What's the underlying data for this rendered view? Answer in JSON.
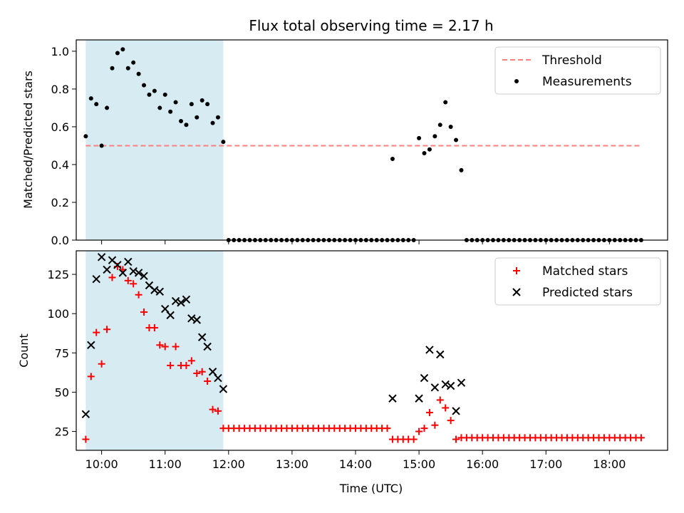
{
  "chart_data": [
    {
      "type": "scatter",
      "title": "Flux total observing time = 2.17 h",
      "ylabel": "Matched/Predicted stars",
      "xlabel": "",
      "xlim": [
        "09:36",
        "18:55"
      ],
      "ylim": [
        0,
        1.06
      ],
      "yticks": [
        "0.0",
        "0.2",
        "0.4",
        "0.6",
        "0.8",
        "1.0"
      ],
      "shaded_span": [
        "09:45",
        "11:55"
      ],
      "shade_color": "#add8e6",
      "legend_position": "top-right",
      "series": [
        {
          "name": "Threshold",
          "kind": "dashed-line",
          "color": "#ff7f7f",
          "x": [
            "09:45",
            "18:30"
          ],
          "y": [
            0.5,
            0.5
          ]
        },
        {
          "name": "Measurements",
          "kind": "dot",
          "color": "#000000",
          "points": [
            [
              "09:45",
              0.55
            ],
            [
              "09:50",
              0.75
            ],
            [
              "09:55",
              0.72
            ],
            [
              "10:00",
              0.5
            ],
            [
              "10:05",
              0.7
            ],
            [
              "10:10",
              0.91
            ],
            [
              "10:15",
              0.99
            ],
            [
              "10:20",
              1.01
            ],
            [
              "10:25",
              0.91
            ],
            [
              "10:30",
              0.94
            ],
            [
              "10:35",
              0.88
            ],
            [
              "10:40",
              0.82
            ],
            [
              "10:45",
              0.77
            ],
            [
              "10:50",
              0.79
            ],
            [
              "10:55",
              0.7
            ],
            [
              "11:00",
              0.77
            ],
            [
              "11:05",
              0.68
            ],
            [
              "11:10",
              0.73
            ],
            [
              "11:15",
              0.63
            ],
            [
              "11:20",
              0.61
            ],
            [
              "11:25",
              0.72
            ],
            [
              "11:30",
              0.65
            ],
            [
              "11:35",
              0.74
            ],
            [
              "11:40",
              0.72
            ],
            [
              "11:45",
              0.62
            ],
            [
              "11:50",
              0.65
            ],
            [
              "11:55",
              0.52
            ],
            [
              "14:35",
              0.43
            ],
            [
              "15:00",
              0.54
            ],
            [
              "15:05",
              0.46
            ],
            [
              "15:10",
              0.48
            ],
            [
              "15:15",
              0.55
            ],
            [
              "15:20",
              0.61
            ],
            [
              "15:25",
              0.73
            ],
            [
              "15:30",
              0.6
            ],
            [
              "15:35",
              0.53
            ],
            [
              "15:40",
              0.37
            ]
          ],
          "zero_ranges": [
            [
              "12:00",
              "14:30"
            ],
            [
              "14:35",
              "14:55"
            ],
            [
              "15:45",
              "18:30"
            ]
          ],
          "zero_step_minutes": 5
        }
      ]
    },
    {
      "type": "scatter",
      "title": "",
      "ylabel": "Count",
      "xlabel": "Time (UTC)",
      "xlim": [
        "09:36",
        "18:55"
      ],
      "ylim": [
        13,
        140
      ],
      "yticks": [
        "25",
        "50",
        "75",
        "100",
        "125"
      ],
      "xticks": [
        "10:00",
        "11:00",
        "12:00",
        "13:00",
        "14:00",
        "15:00",
        "16:00",
        "17:00",
        "18:00"
      ],
      "shaded_span": [
        "09:45",
        "11:55"
      ],
      "shade_color": "#add8e6",
      "legend_position": "top-right",
      "series": [
        {
          "name": "Matched stars",
          "marker": "+",
          "color": "#ff0000",
          "points": [
            [
              "09:45",
              20
            ],
            [
              "09:50",
              60
            ],
            [
              "09:55",
              88
            ],
            [
              "10:00",
              68
            ],
            [
              "10:05",
              90
            ],
            [
              "10:10",
              123
            ],
            [
              "10:15",
              130
            ],
            [
              "10:20",
              128
            ],
            [
              "10:25",
              121
            ],
            [
              "10:30",
              119
            ],
            [
              "10:35",
              112
            ],
            [
              "10:40",
              101
            ],
            [
              "10:45",
              91
            ],
            [
              "10:50",
              91
            ],
            [
              "10:55",
              80
            ],
            [
              "11:00",
              79
            ],
            [
              "11:05",
              67
            ],
            [
              "11:10",
              79
            ],
            [
              "11:15",
              67
            ],
            [
              "11:20",
              67
            ],
            [
              "11:25",
              70
            ],
            [
              "11:30",
              62
            ],
            [
              "11:35",
              63
            ],
            [
              "11:40",
              57
            ],
            [
              "11:45",
              39
            ],
            [
              "11:50",
              38
            ],
            [
              "14:35",
              20
            ],
            [
              "14:40",
              20
            ],
            [
              "14:45",
              20
            ],
            [
              "14:50",
              20
            ],
            [
              "14:55",
              20
            ],
            [
              "15:00",
              25
            ],
            [
              "15:05",
              27
            ],
            [
              "15:10",
              37
            ],
            [
              "15:15",
              29
            ],
            [
              "15:20",
              45
            ],
            [
              "15:25",
              40
            ],
            [
              "15:30",
              32
            ],
            [
              "15:35",
              20
            ]
          ],
          "constant_ranges": [
            {
              "from": "11:55",
              "to": "14:30",
              "value": 27
            },
            {
              "from": "15:40",
              "to": "18:30",
              "value": 21
            }
          ],
          "constant_step_minutes": 5
        },
        {
          "name": "Predicted stars",
          "marker": "x",
          "color": "#000000",
          "points": [
            [
              "09:45",
              36
            ],
            [
              "09:50",
              80
            ],
            [
              "09:55",
              122
            ],
            [
              "10:00",
              136
            ],
            [
              "10:05",
              128
            ],
            [
              "10:10",
              134
            ],
            [
              "10:15",
              131
            ],
            [
              "10:20",
              126
            ],
            [
              "10:25",
              133
            ],
            [
              "10:30",
              127
            ],
            [
              "10:35",
              126
            ],
            [
              "10:40",
              124
            ],
            [
              "10:45",
              118
            ],
            [
              "10:50",
              115
            ],
            [
              "10:55",
              114
            ],
            [
              "11:00",
              103
            ],
            [
              "11:05",
              99
            ],
            [
              "11:10",
              108
            ],
            [
              "11:15",
              107
            ],
            [
              "11:20",
              109
            ],
            [
              "11:25",
              97
            ],
            [
              "11:30",
              96
            ],
            [
              "11:35",
              85
            ],
            [
              "11:40",
              79
            ],
            [
              "11:45",
              63
            ],
            [
              "11:50",
              59
            ],
            [
              "11:55",
              52
            ],
            [
              "14:35",
              46
            ],
            [
              "15:00",
              46
            ],
            [
              "15:05",
              59
            ],
            [
              "15:10",
              77
            ],
            [
              "15:15",
              53
            ],
            [
              "15:20",
              74
            ],
            [
              "15:25",
              55
            ],
            [
              "15:30",
              54
            ],
            [
              "15:35",
              38
            ],
            [
              "15:40",
              56
            ]
          ]
        }
      ]
    }
  ]
}
